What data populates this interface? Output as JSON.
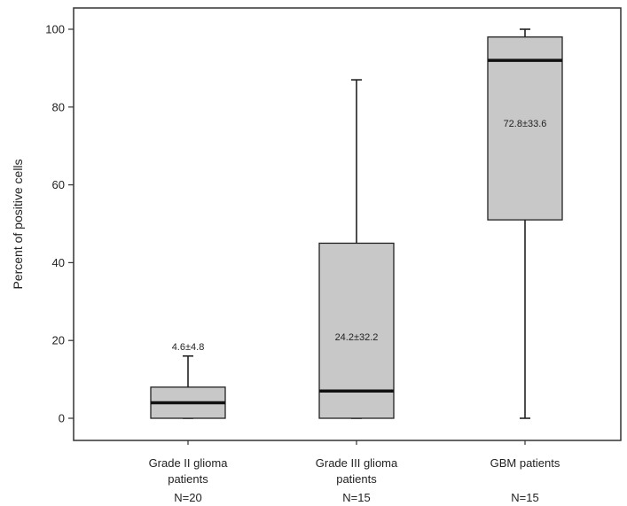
{
  "chart_data": {
    "type": "boxplot",
    "ylabel": "Percent of positive cells",
    "xlabel": "",
    "ylim": [
      -6,
      106
    ],
    "yticks": [
      0,
      20,
      40,
      60,
      80,
      100
    ],
    "grid": false,
    "legend": "none",
    "box_color": "#c8c8c8",
    "median_color": "#111111",
    "categories": [
      "Grade II glioma patients",
      "Grade III glioma patients",
      "GBM patients"
    ],
    "category_labels": [
      [
        "Grade II glioma",
        "patients",
        "N=20"
      ],
      [
        "Grade III glioma",
        "patients",
        "N=15"
      ],
      [
        "GBM patients",
        "",
        "N=15"
      ]
    ],
    "series": [
      {
        "category": "Grade II glioma patients",
        "n": 20,
        "min": 0,
        "q1": 0,
        "median": 4,
        "q3": 8,
        "max": 16,
        "annotation": "4.6±4.8"
      },
      {
        "category": "Grade III glioma patients",
        "n": 15,
        "min": 0,
        "q1": 0,
        "median": 7,
        "q3": 45,
        "max": 87,
        "annotation": "24.2±32.2"
      },
      {
        "category": "GBM patients",
        "n": 15,
        "min": 0,
        "q1": 51,
        "median": 92,
        "q3": 98,
        "max": 100,
        "annotation": "72.8±33.6"
      }
    ]
  }
}
